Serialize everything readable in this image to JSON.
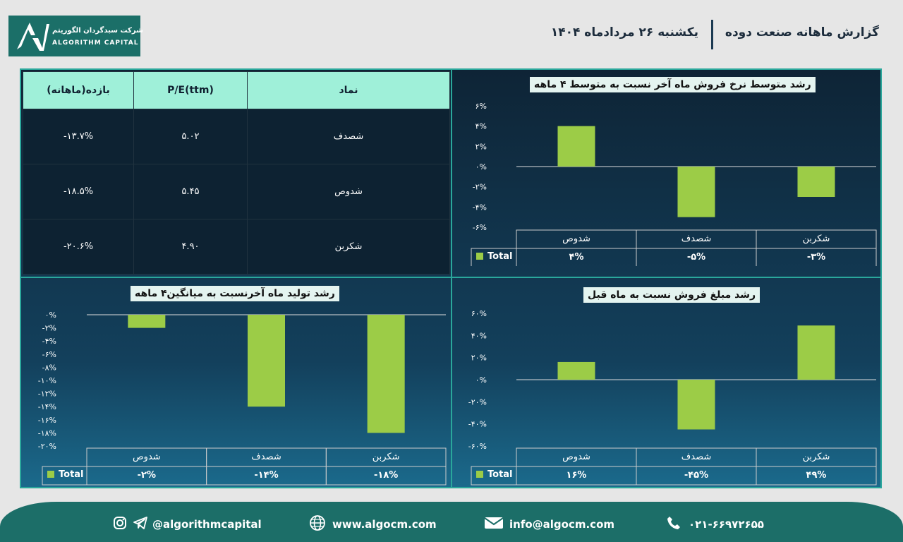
{
  "header": {
    "title": "گزارش ماهانه صنعت دوده",
    "date": "یکشنبه ۲۶ مردادماه ۱۴۰۴",
    "logo_fa": "شرکت سبدگردان الگوریتم",
    "logo_en": "ALGORITHM CAPITAL"
  },
  "table": {
    "headers": [
      "نماد",
      "P/E(ttm)",
      "بازده(ماهانه)"
    ],
    "rows": [
      {
        "symbol": "شصدف",
        "pe": "۵.۰۲",
        "ret": "-۱۳.۷%"
      },
      {
        "symbol": "شدوص",
        "pe": "۵.۴۵",
        "ret": "-۱۸.۵%"
      },
      {
        "symbol": "شکربن",
        "pe": "۴.۹۰",
        "ret": "-۲۰.۶%"
      }
    ]
  },
  "colors": {
    "bar": "#9ccc47",
    "accent": "#2aa79b",
    "brand": "#1b6f68"
  },
  "chart_data": [
    {
      "type": "bar",
      "title": "رشد متوسط نرخ فروش ماه آخر نسبت به متوسط ۴ ماهه",
      "categories": [
        "شدوص",
        "شصدف",
        "شکربن"
      ],
      "series": [
        {
          "name": "Total",
          "values": [
            4,
            -5,
            -3
          ]
        }
      ],
      "value_labels": [
        "۴%",
        "-۵%",
        "-۳%"
      ],
      "ylim": [
        -6,
        6
      ],
      "yticks": [
        6,
        4,
        2,
        0,
        -2,
        -4,
        -6
      ],
      "ytick_labels": [
        "۶%",
        "۴%",
        "۲%",
        "۰%",
        "-۲%",
        "-۴%",
        "-۶%"
      ]
    },
    {
      "type": "bar",
      "title": "رشد تولید ماه آخرنسبت به میانگین۴ ماهه",
      "categories": [
        "شدوص",
        "شصدف",
        "شکربن"
      ],
      "series": [
        {
          "name": "Total",
          "values": [
            -2,
            -14,
            -18
          ]
        }
      ],
      "value_labels": [
        "-۲%",
        "-۱۴%",
        "-۱۸%"
      ],
      "ylim": [
        -20,
        0
      ],
      "yticks": [
        0,
        -2,
        -4,
        -6,
        -8,
        -10,
        -12,
        -14,
        -16,
        -18,
        -20
      ],
      "ytick_labels": [
        "۰%",
        "-۲%",
        "-۴%",
        "-۶%",
        "-۸%",
        "-۱۰%",
        "-۱۲%",
        "-۱۴%",
        "-۱۶%",
        "-۱۸%",
        "-۲۰%"
      ]
    },
    {
      "type": "bar",
      "title": "رشد مبلغ فروش نسبت به ماه قبل",
      "categories": [
        "شدوص",
        "شصدف",
        "شکربن"
      ],
      "series": [
        {
          "name": "Total",
          "values": [
            16,
            -45,
            49
          ]
        }
      ],
      "value_labels": [
        "۱۶%",
        "-۴۵%",
        "۴۹%"
      ],
      "ylim": [
        -60,
        60
      ],
      "yticks": [
        60,
        40,
        20,
        0,
        -20,
        -40,
        -60
      ],
      "ytick_labels": [
        "۶۰%",
        "۴۰%",
        "۲۰%",
        "۰%",
        "-۲۰%",
        "-۴۰%",
        "-۶۰%"
      ]
    }
  ],
  "footer": {
    "social": "@algorithmcapital",
    "website": "www.algocm.com",
    "email": "info@algocm.com",
    "phone": "۰۲۱-۶۶۹۷۲۶۵۵"
  }
}
